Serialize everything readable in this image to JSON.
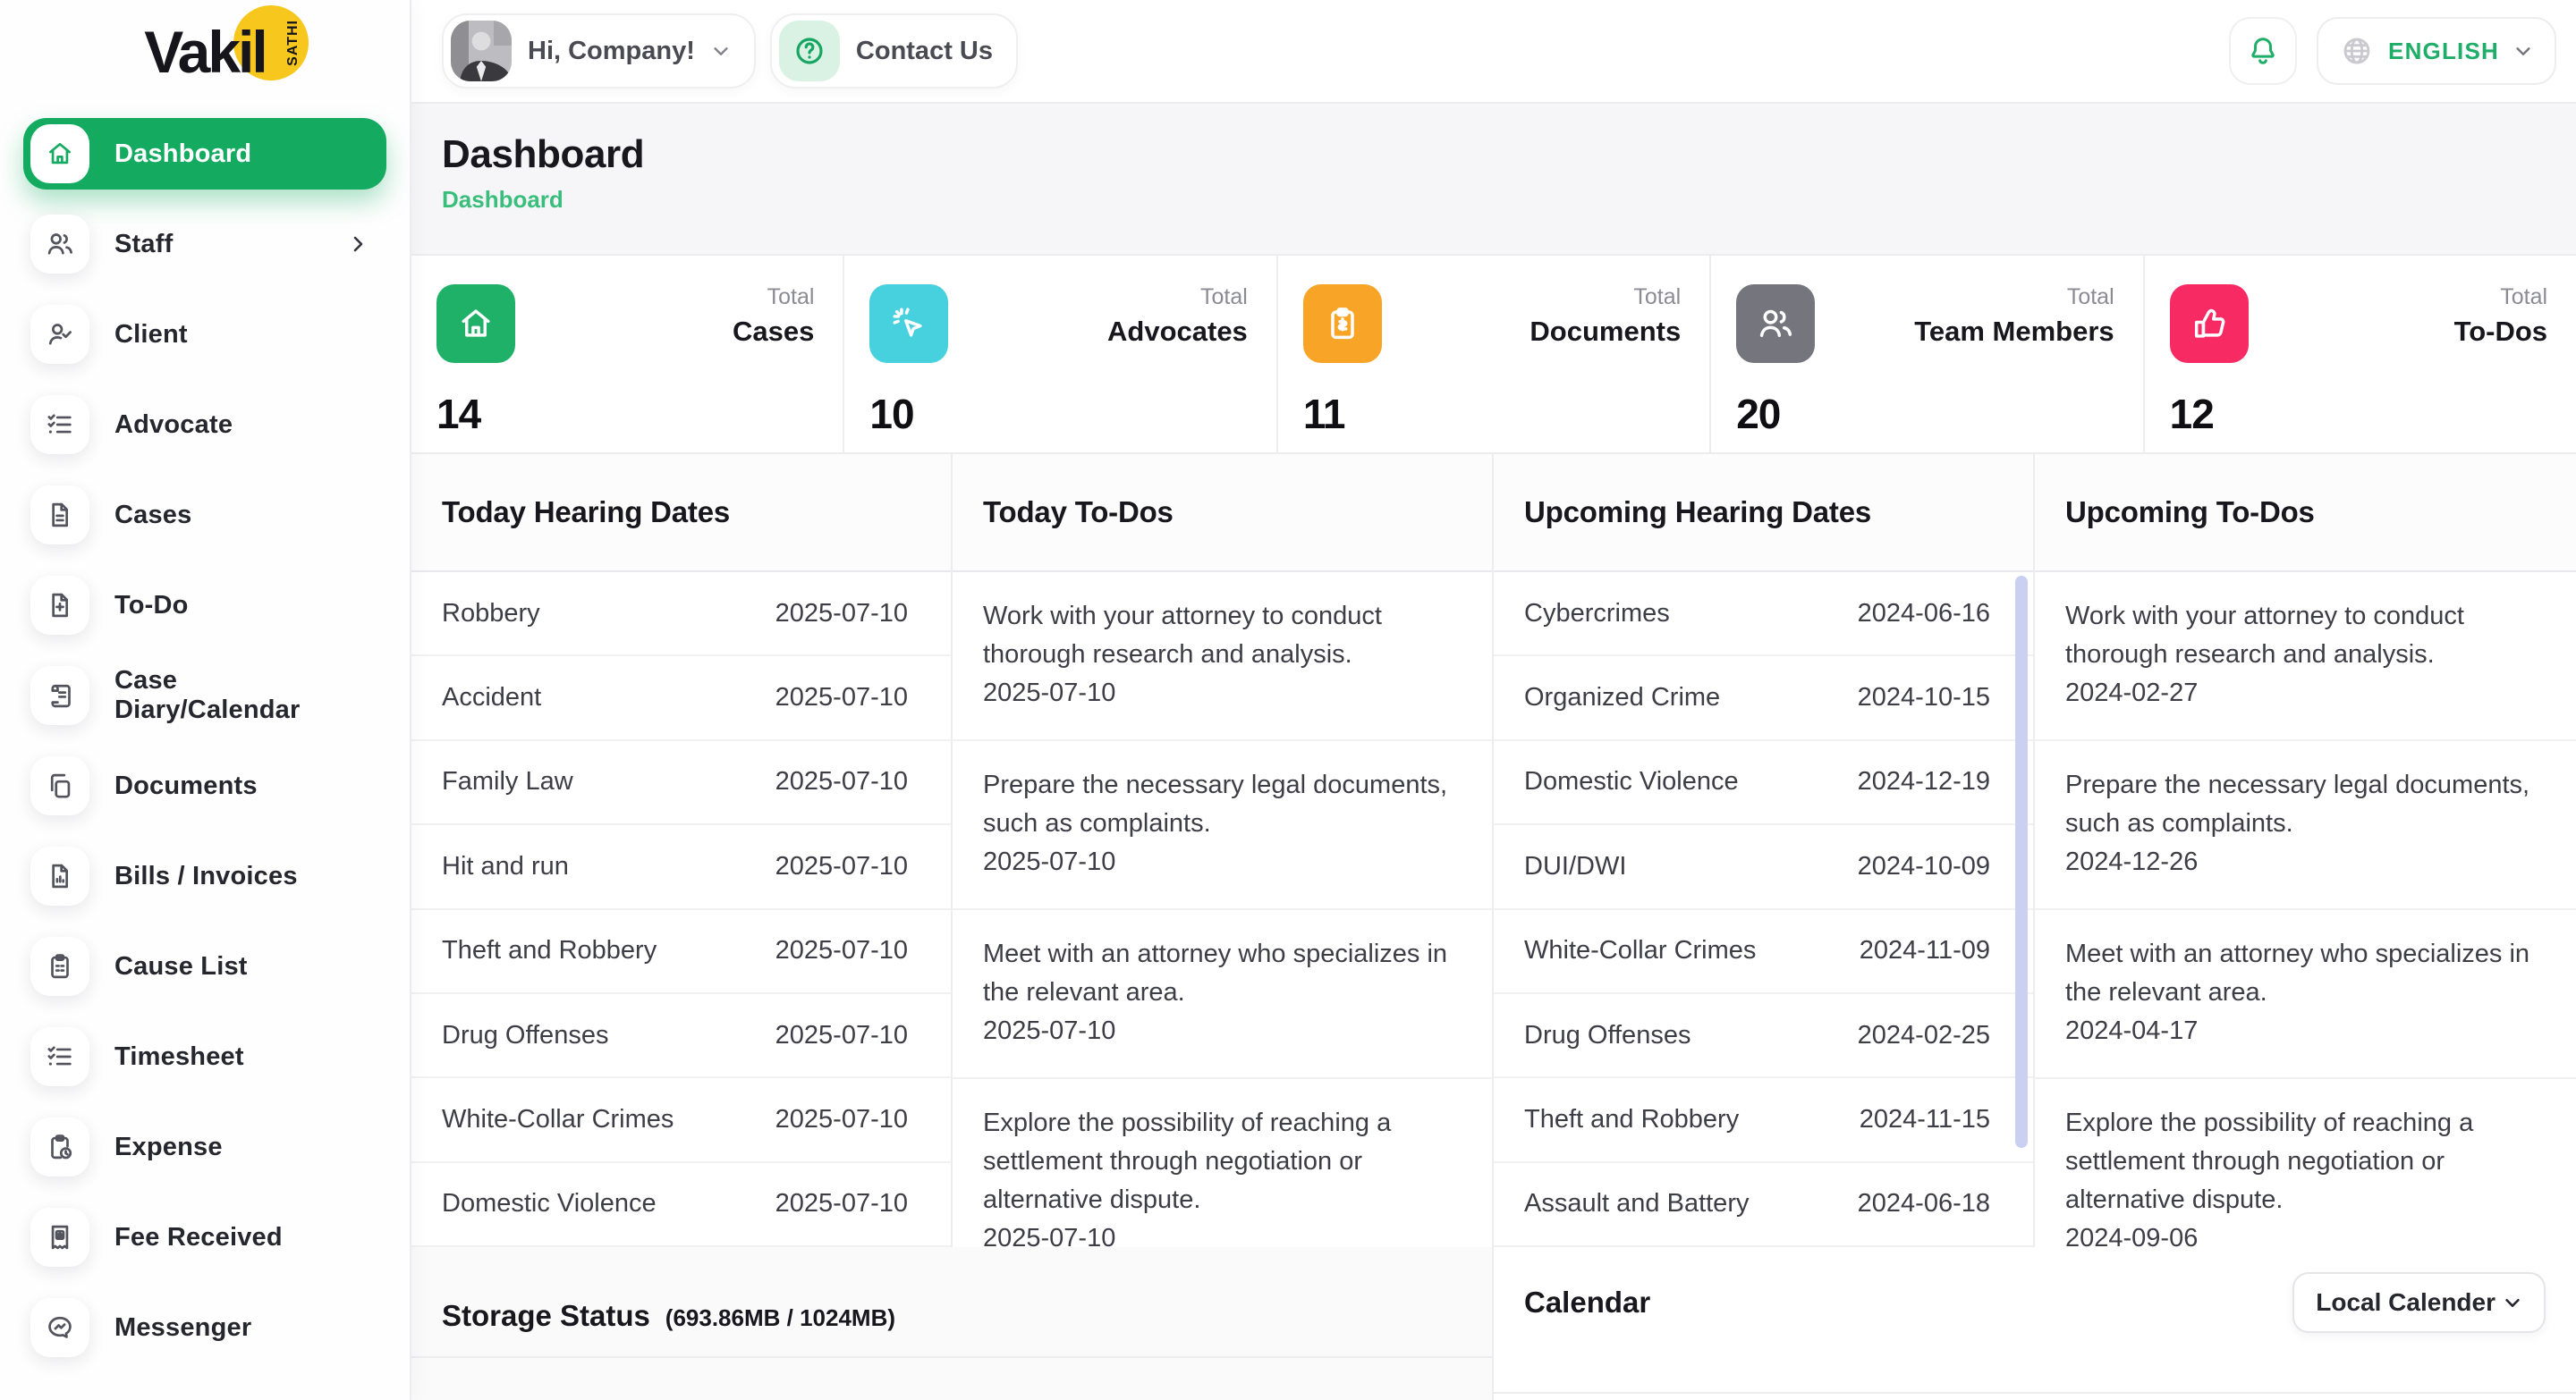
{
  "brand": {
    "name": "Vakil",
    "badge": "SATHI"
  },
  "header": {
    "greeting": "Hi, Company!",
    "contact_label": "Contact Us",
    "language": "ENGLISH"
  },
  "sidebar": {
    "items": [
      {
        "label": "Dashboard",
        "icon": "home",
        "active": true,
        "chevron": false
      },
      {
        "label": "Staff",
        "icon": "users",
        "active": false,
        "chevron": true
      },
      {
        "label": "Client",
        "icon": "user-check",
        "active": false,
        "chevron": false
      },
      {
        "label": "Advocate",
        "icon": "checklist",
        "active": false,
        "chevron": false
      },
      {
        "label": "Cases",
        "icon": "file",
        "active": false,
        "chevron": false
      },
      {
        "label": "To-Do",
        "icon": "file-plus",
        "active": false,
        "chevron": false
      },
      {
        "label": "Case Diary/Calendar",
        "icon": "scroll",
        "active": false,
        "chevron": false
      },
      {
        "label": "Documents",
        "icon": "copy",
        "active": false,
        "chevron": false
      },
      {
        "label": "Bills / Invoices",
        "icon": "file-chart",
        "active": false,
        "chevron": false
      },
      {
        "label": "Cause List",
        "icon": "clipboard",
        "active": false,
        "chevron": false
      },
      {
        "label": "Timesheet",
        "icon": "checklist",
        "active": false,
        "chevron": false
      },
      {
        "label": "Expense",
        "icon": "clipboard-clock",
        "active": false,
        "chevron": false
      },
      {
        "label": "Fee Received",
        "icon": "receipt-dollar",
        "active": false,
        "chevron": false
      },
      {
        "label": "Messenger",
        "icon": "chat",
        "active": false,
        "chevron": false
      }
    ]
  },
  "page": {
    "title": "Dashboard",
    "breadcrumb": "Dashboard"
  },
  "stats": [
    {
      "top": "Total",
      "label": "Cases",
      "value": "14",
      "color": "#1FB168",
      "icon": "home"
    },
    {
      "top": "Total",
      "label": "Advocates",
      "value": "10",
      "color": "#47D0DE",
      "icon": "cursor-click"
    },
    {
      "top": "Total",
      "label": "Documents",
      "value": "11",
      "color": "#F8A527",
      "icon": "clipboard-dollar"
    },
    {
      "top": "Total",
      "label": "Team Members",
      "value": "20",
      "color": "#74757D",
      "icon": "users"
    },
    {
      "top": "Total",
      "label": "To-Dos",
      "value": "12",
      "color": "#F72A64",
      "icon": "thumbs-up"
    }
  ],
  "columns": {
    "today_hearings": {
      "title": "Today Hearing Dates",
      "rows": [
        {
          "name": "Robbery",
          "date": "2025-07-10"
        },
        {
          "name": "Accident",
          "date": "2025-07-10"
        },
        {
          "name": "Family Law",
          "date": "2025-07-10"
        },
        {
          "name": "Hit and run",
          "date": "2025-07-10"
        },
        {
          "name": "Theft and Robbery",
          "date": "2025-07-10"
        },
        {
          "name": "Drug Offenses",
          "date": "2025-07-10"
        },
        {
          "name": "White-Collar Crimes",
          "date": "2025-07-10"
        },
        {
          "name": "Domestic Violence",
          "date": "2025-07-10"
        }
      ]
    },
    "today_todos": {
      "title": "Today To-Dos",
      "items": [
        {
          "text": "Work with your attorney to conduct thorough research and analysis.",
          "date": "2025-07-10"
        },
        {
          "text": "Prepare the necessary legal documents, such as complaints.",
          "date": "2025-07-10"
        },
        {
          "text": "Meet with an attorney who specializes in the relevant area.",
          "date": "2025-07-10"
        },
        {
          "text": "Explore the possibility of reaching a settlement through negotiation or alternative dispute.",
          "date": "2025-07-10"
        }
      ]
    },
    "upcoming_hearings": {
      "title": "Upcoming Hearing Dates",
      "rows": [
        {
          "name": "Cybercrimes",
          "date": "2024-06-16"
        },
        {
          "name": "Organized Crime",
          "date": "2024-10-15"
        },
        {
          "name": "Domestic Violence",
          "date": "2024-12-19"
        },
        {
          "name": "DUI/DWI",
          "date": "2024-10-09"
        },
        {
          "name": "White-Collar Crimes",
          "date": "2024-11-09"
        },
        {
          "name": "Drug Offenses",
          "date": "2024-02-25"
        },
        {
          "name": "Theft and Robbery",
          "date": "2024-11-15"
        },
        {
          "name": "Assault and Battery",
          "date": "2024-06-18"
        }
      ]
    },
    "upcoming_todos": {
      "title": "Upcoming To-Dos",
      "items": [
        {
          "text": "Work with your attorney to conduct thorough research and analysis.",
          "date": "2024-02-27"
        },
        {
          "text": "Prepare the necessary legal documents, such as complaints.",
          "date": "2024-12-26"
        },
        {
          "text": "Meet with an attorney who specializes in the relevant area.",
          "date": "2024-04-17"
        },
        {
          "text": "Explore the possibility of reaching a settlement through negotiation or alternative dispute.",
          "date": "2024-09-06"
        }
      ]
    }
  },
  "storage": {
    "title": "Storage Status",
    "detail": "(693.86MB / 1024MB)"
  },
  "calendar": {
    "title": "Calendar",
    "selector": "Local Calender"
  }
}
